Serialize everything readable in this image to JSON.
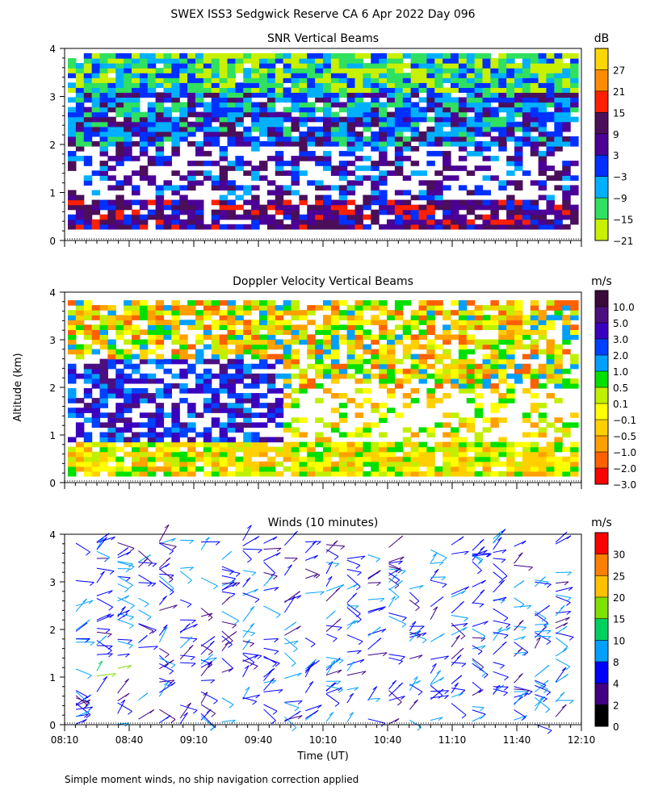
{
  "header": {
    "title": "SWEX ISS3 Sedgwick Reserve CA   6 Apr 2022 Day 096"
  },
  "figure": {
    "shared_ylabel": "Altitude (km)",
    "shared_xlabel": "Time (UT)",
    "footnote": "Simple moment winds, no ship navigation correction applied"
  },
  "chart_data": [
    {
      "id": "snr",
      "type": "heatmap",
      "title": "SNR Vertical Beams",
      "xlabel": "",
      "ylabel": "Altitude (km)",
      "xlim": [
        "08:10",
        "12:10"
      ],
      "ylim": [
        0,
        4
      ],
      "y_ticks": [
        "0",
        "1",
        "2",
        "3",
        "4"
      ],
      "x_ticks": [
        "08:10",
        "08:40",
        "09:10",
        "09:40",
        "10:10",
        "10:40",
        "11:10",
        "11:40",
        "12:10"
      ],
      "colorbar": {
        "unit": "dB",
        "labels": [
          "27",
          "21",
          "15",
          "9",
          "3",
          "−3",
          "−9",
          "−15",
          "−21"
        ],
        "colors": [
          "#ffd700",
          "#ff8c00",
          "#ff2000",
          "#4b0f5a",
          "#4b0096",
          "#0030ff",
          "#00b0ff",
          "#30e060",
          "#c8f000"
        ]
      },
      "summary": {
        "0.2-0.8 km": "3 to 9 dB",
        "0.8-2.0 km": "mostly missing with scattered 3 to 9 dB",
        "2.0-3.2 km": "-3 to 9 dB",
        "3.2-4.0 km": "-21 to -9 dB"
      }
    },
    {
      "id": "doppler",
      "type": "heatmap",
      "title": "Doppler Velocity Vertical Beams",
      "xlabel": "",
      "ylabel": "Altitude (km)",
      "xlim": [
        "08:10",
        "12:10"
      ],
      "ylim": [
        0,
        4
      ],
      "y_ticks": [
        "0",
        "1",
        "2",
        "3",
        "4"
      ],
      "x_ticks": [
        "08:10",
        "08:40",
        "09:10",
        "09:40",
        "10:10",
        "10:40",
        "11:10",
        "11:40",
        "12:10"
      ],
      "colorbar": {
        "unit": "m/s",
        "labels": [
          "10.0",
          "5.0",
          "3.0",
          "2.0",
          "1.0",
          "0.5",
          "0.1",
          "−0.1",
          "−0.5",
          "−1.0",
          "−2.0",
          "−3.0"
        ],
        "colors": [
          "#3a0a3a",
          "#4b0f80",
          "#3a00c0",
          "#0040ff",
          "#00a0ff",
          "#00e000",
          "#c0f000",
          "#ffff00",
          "#ffd000",
          "#ffa000",
          "#ff6000",
          "#ff0000"
        ]
      },
      "summary": {
        "0.0-0.8 km": "-0.5 to 0.1 m/s",
        "0.8-2.6 km, 08:10-09:50": "2.0 to 5.0 m/s",
        "2.6-4.0 km": "-2.0 to 0.5 m/s"
      }
    },
    {
      "id": "winds",
      "type": "scatter",
      "title": "Winds (10 minutes)",
      "xlabel": "Time (UT)",
      "ylabel": "Altitude (km)",
      "xlim": [
        "08:10",
        "12:10"
      ],
      "ylim": [
        0,
        4
      ],
      "y_ticks": [
        "0",
        "1",
        "2",
        "3",
        "4"
      ],
      "x_ticks": [
        "08:10",
        "08:40",
        "09:10",
        "09:40",
        "10:10",
        "10:40",
        "11:10",
        "11:40",
        "12:10"
      ],
      "colorbar": {
        "unit": "m/s",
        "labels": [
          "30",
          "25",
          "20",
          "15",
          "10",
          "8",
          "4",
          "2",
          "0"
        ],
        "colors": [
          "#ff0000",
          "#ff8000",
          "#ffc000",
          "#80e000",
          "#00d060",
          "#00a0ff",
          "#0000ff",
          "#400080",
          "#000000"
        ]
      },
      "summary": {
        "0.8-1.4 km, 08:20-08:40": "10 to 20 m/s",
        "0.0-4.0 km": "mostly 2 to 8 m/s"
      }
    }
  ]
}
